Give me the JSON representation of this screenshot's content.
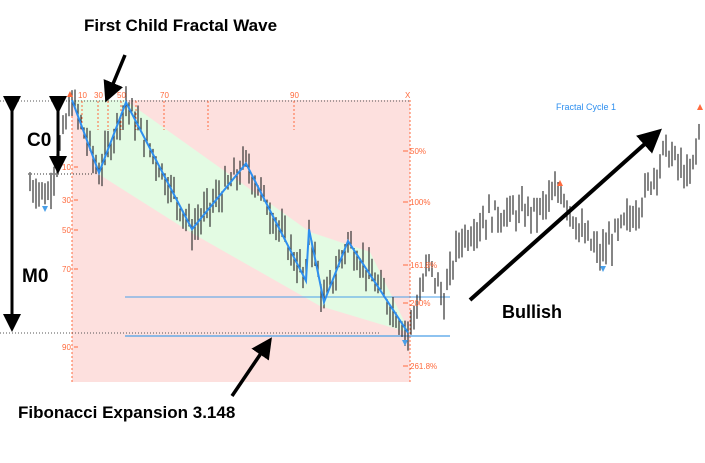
{
  "chart_data": {
    "type": "candlestick",
    "title": "",
    "annotations": {
      "top": "First Child Fractal Wave",
      "c0": "C0",
      "m0": "M0",
      "bullish": "Bullish",
      "fibonacci": "Fibonacci Expansion 3.148",
      "cycle": "Fractal Cycle 1"
    },
    "top_ticks": [
      "10",
      "30",
      "50",
      "70",
      "90",
      "X"
    ],
    "left_ticks": [
      "10",
      "30",
      "50",
      "70",
      "90"
    ],
    "fib_levels": [
      "50%",
      "100%",
      "161.8%",
      "200%",
      "261.8%"
    ],
    "price_path": [
      [
        0,
        64
      ],
      [
        6,
        60
      ],
      [
        14,
        100
      ],
      [
        23,
        69
      ],
      [
        32,
        99
      ],
      [
        54,
        45
      ],
      [
        72,
        73
      ],
      [
        92,
        23
      ],
      [
        93,
        45
      ],
      [
        98,
        14
      ],
      [
        106,
        40
      ],
      [
        126,
        1
      ],
      [
        133,
        30
      ],
      [
        138,
        15
      ],
      [
        143,
        40
      ],
      [
        153,
        51
      ],
      [
        170,
        53
      ],
      [
        177,
        62
      ],
      [
        183,
        45
      ],
      [
        190,
        34
      ],
      [
        203,
        55
      ],
      [
        212,
        79
      ],
      [
        220,
        66
      ],
      [
        224,
        92
      ]
    ],
    "zigzag": [
      [
        14,
        100
      ],
      [
        23,
        69
      ],
      [
        32,
        99
      ],
      [
        54,
        45
      ],
      [
        72,
        73
      ],
      [
        92,
        23
      ],
      [
        93,
        45
      ],
      [
        98,
        14
      ],
      [
        106,
        40
      ],
      [
        126,
        1
      ]
    ],
    "colors": {
      "zigzag": "#2e8fef",
      "bull_zone": "#e3fbe3",
      "bear_zone": "#fde0de",
      "ticks": "#ff6a3d",
      "candles": "#333333"
    }
  }
}
